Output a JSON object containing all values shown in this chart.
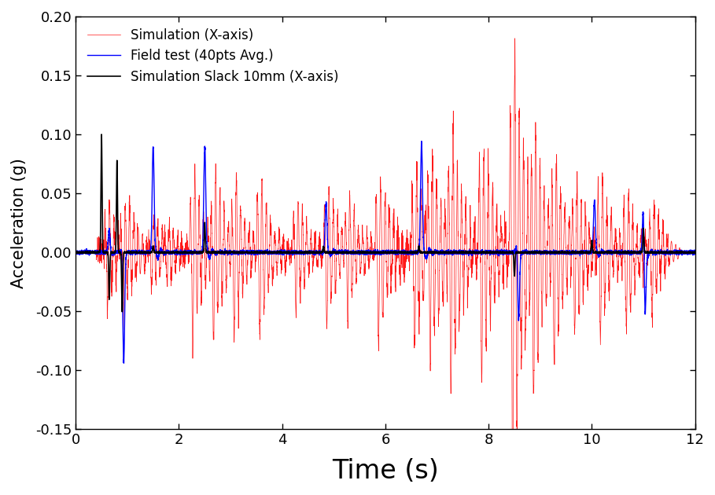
{
  "title": "",
  "xlabel": "Time (s)",
  "ylabel": "Acceleration (g)",
  "xlim": [
    0,
    12
  ],
  "ylim": [
    -0.15,
    0.2
  ],
  "yticks": [
    -0.15,
    -0.1,
    -0.05,
    0.0,
    0.05,
    0.1,
    0.15,
    0.2
  ],
  "xticks": [
    0,
    2,
    4,
    6,
    8,
    10,
    12
  ],
  "legend": [
    {
      "label": "Field test (40pts Avg.)",
      "color": "#0000FF",
      "lw": 1.0
    },
    {
      "label": "Simulation (X-axis)",
      "color": "#FF0000",
      "lw": 0.5
    },
    {
      "label": "Simulation Slack 10mm (X-axis)",
      "color": "#000000",
      "lw": 1.2
    }
  ],
  "background_color": "#FFFFFF",
  "xlabel_fontsize": 24,
  "ylabel_fontsize": 15,
  "tick_fontsize": 13,
  "legend_fontsize": 12,
  "seed": 42,
  "duration": 12.0,
  "fs": 1000
}
